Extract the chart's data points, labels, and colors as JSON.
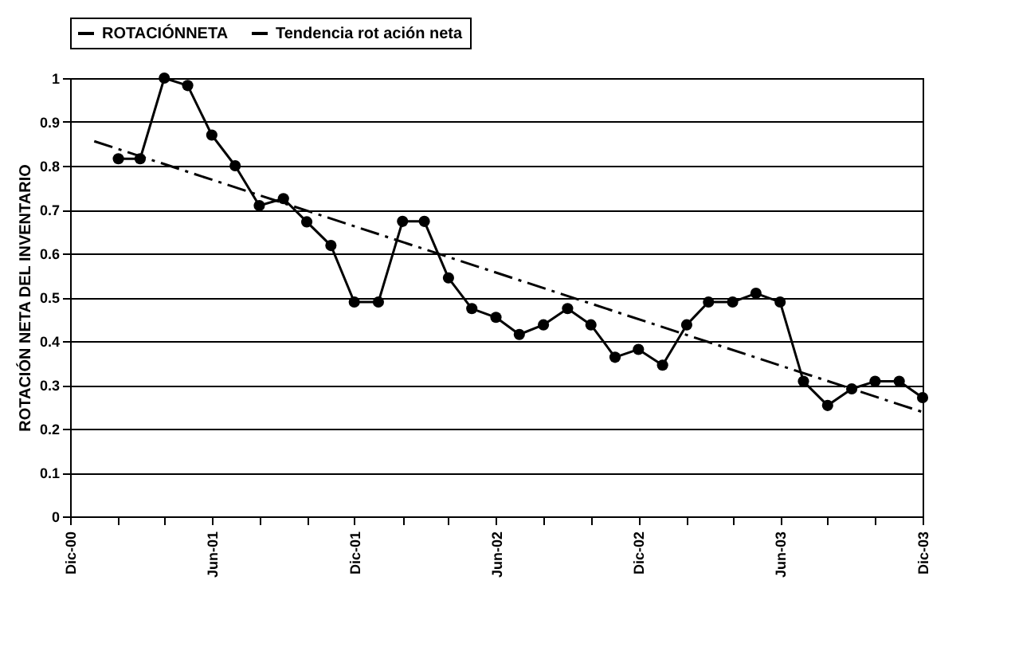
{
  "chart_data": {
    "type": "line",
    "ylabel": "ROTACIÓN NETA DEL INVENTARIO",
    "x": [
      "2001-02",
      "2001-03",
      "2001-04",
      "2001-05",
      "2001-06",
      "2001-07",
      "2001-08",
      "2001-09",
      "2001-10",
      "2001-11",
      "2001-12",
      "2002-01",
      "2002-02",
      "2002-03",
      "2002-04",
      "2002-05",
      "2002-06",
      "2002-07",
      "2002-08",
      "2002-09",
      "2002-10",
      "2002-11",
      "2002-12",
      "2003-01",
      "2003-02",
      "2003-03",
      "2003-04",
      "2003-05",
      "2003-06",
      "2003-07",
      "2003-08",
      "2003-09",
      "2003-10",
      "2003-11",
      "2003-12"
    ],
    "series": [
      {
        "name": "ROTACIÓNNETA",
        "color": "#000000",
        "marker": "circle",
        "line_style": "solid",
        "values": [
          0.816,
          0.816,
          1.0,
          0.983,
          0.87,
          0.8,
          0.709,
          0.725,
          0.672,
          0.618,
          0.489,
          0.489,
          0.673,
          0.673,
          0.544,
          0.474,
          0.454,
          0.415,
          0.437,
          0.474,
          0.437,
          0.363,
          0.381,
          0.345,
          0.437,
          0.489,
          0.489,
          0.509,
          0.489,
          0.308,
          0.253,
          0.291,
          0.308,
          0.308,
          0.271
        ]
      },
      {
        "name": "Tendencia rot ación neta",
        "type": "line",
        "color": "#000000",
        "marker": "none",
        "line_style": "dashed",
        "x": [
          "2001-01",
          "2003-12"
        ],
        "values": [
          0.856,
          0.238
        ]
      }
    ],
    "xlim": [
      "2000-12",
      "2003-12"
    ],
    "xticks": [
      {
        "value": "2000-12",
        "label": "Dic-00"
      },
      {
        "value": "2001-02",
        "label": null
      },
      {
        "value": "2001-04",
        "label": null
      },
      {
        "value": "2001-06",
        "label": "Jun-01"
      },
      {
        "value": "2001-08",
        "label": null
      },
      {
        "value": "2001-10",
        "label": null
      },
      {
        "value": "2001-12",
        "label": "Dic-01"
      },
      {
        "value": "2002-02",
        "label": null
      },
      {
        "value": "2002-04",
        "label": null
      },
      {
        "value": "2002-06",
        "label": "Jun-02"
      },
      {
        "value": "2002-08",
        "label": null
      },
      {
        "value": "2002-10",
        "label": null
      },
      {
        "value": "2002-12",
        "label": "Dic-02"
      },
      {
        "value": "2003-02",
        "label": null
      },
      {
        "value": "2003-04",
        "label": null
      },
      {
        "value": "2003-06",
        "label": "Jun-03"
      },
      {
        "value": "2003-08",
        "label": null
      },
      {
        "value": "2003-10",
        "label": null
      },
      {
        "value": "2003-12",
        "label": "Dic-03"
      }
    ],
    "ylim": [
      0,
      1
    ],
    "yticks": [
      0,
      0.1,
      0.2,
      0.3,
      0.4,
      0.5,
      0.6,
      0.7,
      0.8,
      0.9,
      1
    ],
    "grid": "y",
    "legend": "top"
  }
}
